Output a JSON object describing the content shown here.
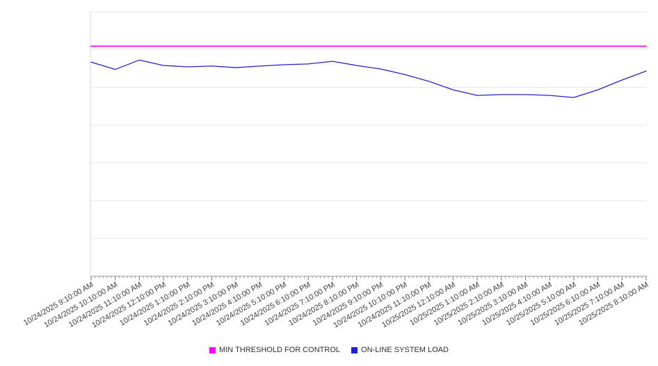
{
  "chart_data": {
    "type": "line",
    "title": "",
    "xlabel": "",
    "ylabel": "",
    "ylim": [
      0,
      100
    ],
    "grid": true,
    "gridline_count": 8,
    "legend_position": "bottom",
    "x": [
      "10/24/2025 9:10:00 AM",
      "10/24/2025 10:10:00 AM",
      "10/24/2025 11:10:00 AM",
      "10/24/2025 12:10:00 PM",
      "10/24/2025 1:10:00 PM",
      "10/24/2025 2:10:00 PM",
      "10/24/2025 3:10:00 PM",
      "10/24/2025 4:10:00 PM",
      "10/24/2025 5:10:00 PM",
      "10/24/2025 6:10:00 PM",
      "10/24/2025 7:10:00 PM",
      "10/24/2025 8:10:00 PM",
      "10/24/2025 9:10:00 PM",
      "10/24/2025 10:10:00 PM",
      "10/24/2025 11:10:00 PM",
      "10/25/2025 12:10:00 AM",
      "10/25/2025 1:10:00 AM",
      "10/25/2025 2:10:00 AM",
      "10/25/2025 3:10:00 AM",
      "10/25/2025 4:10:00 AM",
      "10/25/2025 5:10:00 AM",
      "10/25/2025 6:10:00 AM",
      "10/25/2025 7:10:00 AM",
      "10/25/2025 8:10:00 AM"
    ],
    "series": [
      {
        "name": "MIN THRESHOLD FOR CONTROL",
        "color": "#ff00ff",
        "values": [
          87,
          87,
          87,
          87,
          87,
          87,
          87,
          87,
          87,
          87,
          87,
          87,
          87,
          87,
          87,
          87,
          87,
          87,
          87,
          87,
          87,
          87,
          87,
          87
        ]
      },
      {
        "name": "ON-LINE SYSTEM LOAD",
        "color": "#2222cc",
        "values": [
          81,
          78.2,
          81.8,
          79.7,
          79.2,
          79.5,
          78.9,
          79.5,
          80,
          80.3,
          81.3,
          79.7,
          78.4,
          76.3,
          73.7,
          70.5,
          68.4,
          68.7,
          68.7,
          68.4,
          67.6,
          70.5,
          74.2,
          77.6
        ]
      }
    ]
  }
}
